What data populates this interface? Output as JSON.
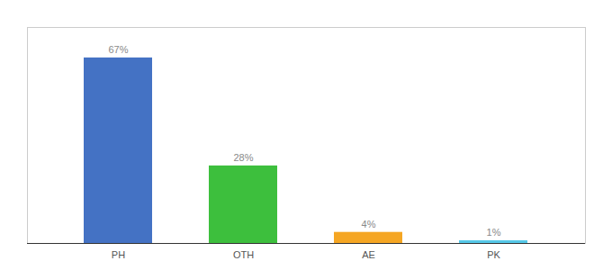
{
  "chart_data": {
    "type": "bar",
    "categories": [
      "PH",
      "OTH",
      "AE",
      "PK"
    ],
    "values": [
      67,
      28,
      4,
      1
    ],
    "value_labels": [
      "67%",
      "28%",
      "4%",
      "1%"
    ],
    "colors": [
      "#4472c4",
      "#3dbf3d",
      "#f5a623",
      "#56c8e8"
    ],
    "ylim": [
      0,
      78
    ],
    "data_labels": true,
    "tick_labels": "x",
    "grid": false
  }
}
